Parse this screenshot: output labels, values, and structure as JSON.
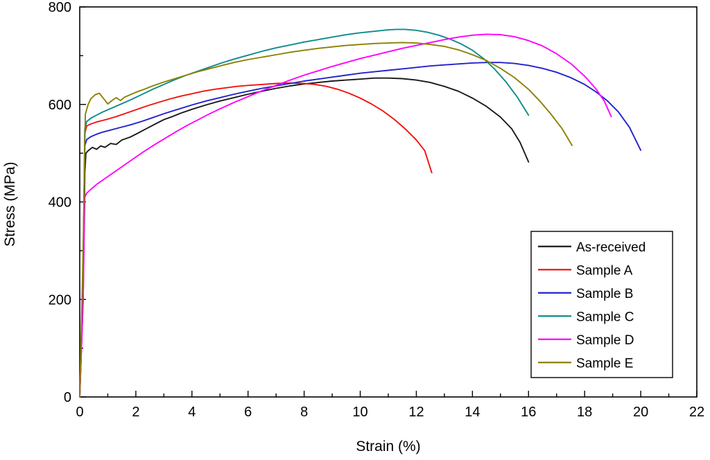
{
  "chart_data": {
    "type": "line",
    "title": "",
    "xlabel": "Strain (%)",
    "ylabel": "Stress (MPa)",
    "xlim": [
      0,
      22
    ],
    "ylim": [
      0,
      800
    ],
    "x_major_tick": 2,
    "x_minor_tick": 1,
    "y_major_tick": 200,
    "y_minor_tick": 100,
    "grid": false,
    "legend_position": "lower-right",
    "axis_color": "#000000",
    "background": "#ffffff",
    "series": [
      {
        "name": "As-received",
        "color": "#1a1a1a",
        "points": [
          [
            0,
            0
          ],
          [
            0.12,
            200
          ],
          [
            0.18,
            460
          ],
          [
            0.22,
            500
          ],
          [
            0.3,
            505
          ],
          [
            0.45,
            512
          ],
          [
            0.6,
            508
          ],
          [
            0.75,
            515
          ],
          [
            0.9,
            512
          ],
          [
            1.1,
            520
          ],
          [
            1.3,
            518
          ],
          [
            1.5,
            527
          ],
          [
            1.8,
            533
          ],
          [
            2.1,
            542
          ],
          [
            2.4,
            551
          ],
          [
            2.7,
            560
          ],
          [
            3.0,
            569
          ],
          [
            3.3,
            575
          ],
          [
            3.6,
            582
          ],
          [
            4.0,
            590
          ],
          [
            4.5,
            599
          ],
          [
            5.0,
            607
          ],
          [
            5.5,
            614
          ],
          [
            6.0,
            621
          ],
          [
            6.5,
            627
          ],
          [
            7.0,
            633
          ],
          [
            7.5,
            638
          ],
          [
            8.0,
            642
          ],
          [
            8.5,
            645
          ],
          [
            9.0,
            648
          ],
          [
            9.5,
            650
          ],
          [
            10.0,
            652
          ],
          [
            10.5,
            654
          ],
          [
            11.0,
            654
          ],
          [
            11.5,
            653
          ],
          [
            12.0,
            650
          ],
          [
            12.5,
            645
          ],
          [
            13.0,
            637
          ],
          [
            13.5,
            627
          ],
          [
            14.0,
            613
          ],
          [
            14.5,
            596
          ],
          [
            15.0,
            574
          ],
          [
            15.4,
            550
          ],
          [
            15.7,
            522
          ],
          [
            16.0,
            482
          ]
        ]
      },
      {
        "name": "Sample A",
        "color": "#f01410",
        "points": [
          [
            0,
            0
          ],
          [
            0.12,
            250
          ],
          [
            0.18,
            540
          ],
          [
            0.25,
            556
          ],
          [
            0.4,
            560
          ],
          [
            0.6,
            564
          ],
          [
            0.8,
            567
          ],
          [
            1.0,
            570
          ],
          [
            1.3,
            575
          ],
          [
            1.6,
            581
          ],
          [
            2.0,
            589
          ],
          [
            2.4,
            597
          ],
          [
            2.8,
            604
          ],
          [
            3.2,
            611
          ],
          [
            3.6,
            617
          ],
          [
            4.0,
            622
          ],
          [
            4.4,
            627
          ],
          [
            4.8,
            631
          ],
          [
            5.2,
            634
          ],
          [
            5.6,
            637
          ],
          [
            6.0,
            639
          ],
          [
            6.5,
            641
          ],
          [
            7.0,
            643
          ],
          [
            7.5,
            644
          ],
          [
            8.0,
            643
          ],
          [
            8.4,
            641
          ],
          [
            8.8,
            637
          ],
          [
            9.2,
            631
          ],
          [
            9.6,
            623
          ],
          [
            10.0,
            613
          ],
          [
            10.4,
            601
          ],
          [
            10.8,
            587
          ],
          [
            11.2,
            570
          ],
          [
            11.6,
            550
          ],
          [
            12.0,
            527
          ],
          [
            12.3,
            505
          ],
          [
            12.55,
            460
          ]
        ]
      },
      {
        "name": "Sample B",
        "color": "#2222cc",
        "points": [
          [
            0,
            0
          ],
          [
            0.12,
            230
          ],
          [
            0.18,
            515
          ],
          [
            0.25,
            528
          ],
          [
            0.4,
            534
          ],
          [
            0.6,
            539
          ],
          [
            0.8,
            543
          ],
          [
            1.0,
            546
          ],
          [
            1.4,
            552
          ],
          [
            1.8,
            558
          ],
          [
            2.2,
            565
          ],
          [
            2.6,
            573
          ],
          [
            3.0,
            581
          ],
          [
            3.5,
            590
          ],
          [
            4.0,
            599
          ],
          [
            4.5,
            607
          ],
          [
            5.0,
            614
          ],
          [
            5.5,
            621
          ],
          [
            6.0,
            627
          ],
          [
            6.5,
            633
          ],
          [
            7.0,
            638
          ],
          [
            7.5,
            643
          ],
          [
            8.0,
            648
          ],
          [
            8.5,
            652
          ],
          [
            9.0,
            656
          ],
          [
            9.5,
            660
          ],
          [
            10.0,
            664
          ],
          [
            10.5,
            667
          ],
          [
            11.0,
            670
          ],
          [
            11.5,
            673
          ],
          [
            12.0,
            676
          ],
          [
            12.5,
            679
          ],
          [
            13.0,
            681
          ],
          [
            13.5,
            683
          ],
          [
            14.0,
            685
          ],
          [
            14.5,
            686
          ],
          [
            15.0,
            686
          ],
          [
            15.5,
            684
          ],
          [
            16.0,
            680
          ],
          [
            16.5,
            674
          ],
          [
            17.0,
            666
          ],
          [
            17.5,
            655
          ],
          [
            18.0,
            641
          ],
          [
            18.4,
            626
          ],
          [
            18.8,
            608
          ],
          [
            19.2,
            585
          ],
          [
            19.6,
            553
          ],
          [
            20.0,
            506
          ]
        ]
      },
      {
        "name": "Sample C",
        "color": "#0d8b8b",
        "points": [
          [
            0,
            0
          ],
          [
            0.12,
            260
          ],
          [
            0.18,
            550
          ],
          [
            0.25,
            565
          ],
          [
            0.4,
            572
          ],
          [
            0.6,
            578
          ],
          [
            0.8,
            584
          ],
          [
            1.0,
            589
          ],
          [
            1.4,
            599
          ],
          [
            1.8,
            609
          ],
          [
            2.2,
            620
          ],
          [
            2.6,
            631
          ],
          [
            3.0,
            641
          ],
          [
            3.4,
            651
          ],
          [
            3.8,
            660
          ],
          [
            4.2,
            668
          ],
          [
            4.6,
            676
          ],
          [
            5.0,
            684
          ],
          [
            5.5,
            693
          ],
          [
            6.0,
            701
          ],
          [
            6.5,
            709
          ],
          [
            7.0,
            716
          ],
          [
            7.5,
            722
          ],
          [
            8.0,
            728
          ],
          [
            8.5,
            733
          ],
          [
            9.0,
            738
          ],
          [
            9.5,
            743
          ],
          [
            10.0,
            747
          ],
          [
            10.5,
            750
          ],
          [
            11.0,
            753
          ],
          [
            11.3,
            754
          ],
          [
            11.6,
            754
          ],
          [
            12.0,
            752
          ],
          [
            12.4,
            748
          ],
          [
            12.8,
            742
          ],
          [
            13.2,
            734
          ],
          [
            13.6,
            724
          ],
          [
            14.0,
            711
          ],
          [
            14.4,
            694
          ],
          [
            14.8,
            672
          ],
          [
            15.2,
            646
          ],
          [
            15.6,
            615
          ],
          [
            16.0,
            578
          ]
        ]
      },
      {
        "name": "Sample D",
        "color": "#ff00ff",
        "points": [
          [
            0,
            0
          ],
          [
            0.12,
            200
          ],
          [
            0.18,
            410
          ],
          [
            0.25,
            418
          ],
          [
            0.4,
            426
          ],
          [
            0.6,
            436
          ],
          [
            0.8,
            444
          ],
          [
            1.0,
            452
          ],
          [
            1.4,
            468
          ],
          [
            1.8,
            484
          ],
          [
            2.2,
            500
          ],
          [
            2.6,
            515
          ],
          [
            3.0,
            529
          ],
          [
            3.4,
            543
          ],
          [
            3.8,
            556
          ],
          [
            4.2,
            568
          ],
          [
            4.6,
            580
          ],
          [
            5.0,
            591
          ],
          [
            5.5,
            604
          ],
          [
            6.0,
            616
          ],
          [
            6.5,
            628
          ],
          [
            7.0,
            639
          ],
          [
            7.5,
            650
          ],
          [
            8.0,
            660
          ],
          [
            8.5,
            669
          ],
          [
            9.0,
            678
          ],
          [
            9.5,
            686
          ],
          [
            10.0,
            694
          ],
          [
            10.5,
            701
          ],
          [
            11.0,
            708
          ],
          [
            11.5,
            715
          ],
          [
            12.0,
            721
          ],
          [
            12.5,
            727
          ],
          [
            13.0,
            733
          ],
          [
            13.5,
            738
          ],
          [
            14.0,
            742
          ],
          [
            14.5,
            744
          ],
          [
            15.0,
            743
          ],
          [
            15.5,
            739
          ],
          [
            16.0,
            731
          ],
          [
            16.5,
            720
          ],
          [
            17.0,
            704
          ],
          [
            17.5,
            684
          ],
          [
            18.0,
            658
          ],
          [
            18.4,
            632
          ],
          [
            18.7,
            607
          ],
          [
            18.95,
            575
          ]
        ]
      },
      {
        "name": "Sample E",
        "color": "#8b8000",
        "points": [
          [
            0,
            0
          ],
          [
            0.12,
            300
          ],
          [
            0.2,
            580
          ],
          [
            0.3,
            600
          ],
          [
            0.4,
            612
          ],
          [
            0.55,
            620
          ],
          [
            0.7,
            623
          ],
          [
            0.85,
            612
          ],
          [
            1.0,
            601
          ],
          [
            1.15,
            608
          ],
          [
            1.3,
            614
          ],
          [
            1.45,
            608
          ],
          [
            1.6,
            615
          ],
          [
            1.8,
            620
          ],
          [
            2.0,
            625
          ],
          [
            2.3,
            631
          ],
          [
            2.6,
            638
          ],
          [
            3.0,
            646
          ],
          [
            3.4,
            653
          ],
          [
            3.8,
            660
          ],
          [
            4.2,
            667
          ],
          [
            4.6,
            673
          ],
          [
            5.0,
            679
          ],
          [
            5.5,
            686
          ],
          [
            6.0,
            692
          ],
          [
            6.5,
            697
          ],
          [
            7.0,
            702
          ],
          [
            7.5,
            707
          ],
          [
            8.0,
            711
          ],
          [
            8.5,
            715
          ],
          [
            9.0,
            718
          ],
          [
            9.5,
            721
          ],
          [
            10.0,
            723
          ],
          [
            10.5,
            725
          ],
          [
            11.0,
            726
          ],
          [
            11.5,
            727
          ],
          [
            12.0,
            726
          ],
          [
            12.5,
            723
          ],
          [
            13.0,
            719
          ],
          [
            13.5,
            712
          ],
          [
            14.0,
            702
          ],
          [
            14.5,
            690
          ],
          [
            15.0,
            674
          ],
          [
            15.5,
            655
          ],
          [
            16.0,
            631
          ],
          [
            16.4,
            607
          ],
          [
            16.8,
            580
          ],
          [
            17.2,
            550
          ],
          [
            17.55,
            516
          ]
        ]
      }
    ]
  }
}
